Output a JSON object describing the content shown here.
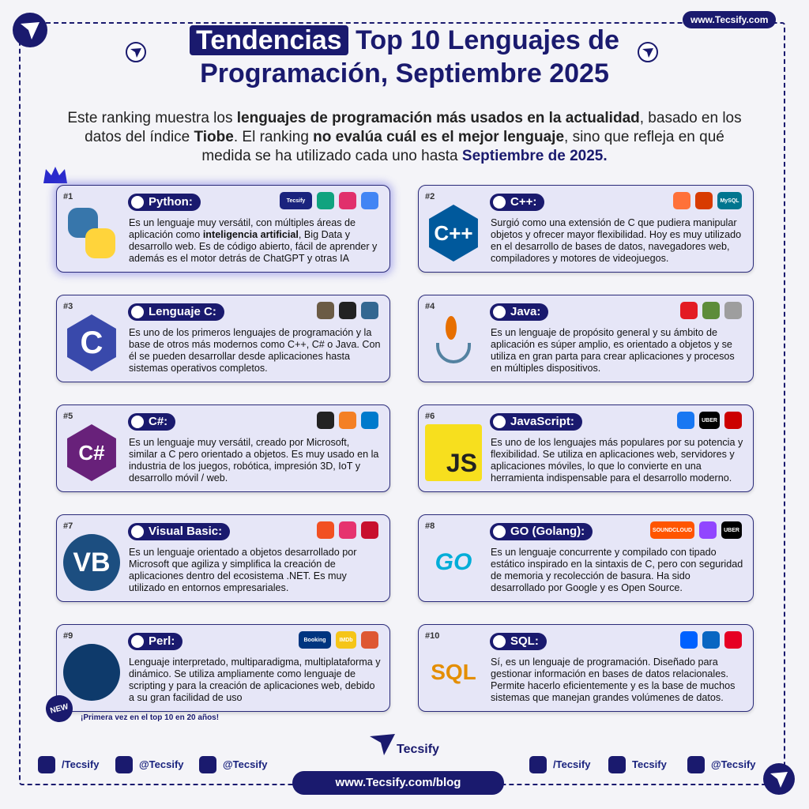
{
  "header": {
    "badge": "www.Tecsify.com",
    "title_highlight": "Tendencias",
    "title": "Top 10 Lenguajes de Programación, Septiembre 2025",
    "intro": [
      "Este ranking muestra los ",
      "lenguajes de programación más usados en la actualidad",
      ", basado en los datos del índice ",
      "Tiobe",
      ". El ranking ",
      "no evalúa cuál es el mejor lenguaje",
      ", sino que refleja en qué medida se ha utilizado cada uno hasta ",
      "Septiembre de 2025."
    ]
  },
  "languages": [
    {
      "rank": "#1",
      "name": "Python:",
      "logo": {
        "colors": [
          "#3776ab",
          "#ffd43b"
        ]
      },
      "icons": [
        {
          "color": "#1a237e",
          "label": "Tecsify"
        },
        {
          "color": "#10a37f"
        },
        {
          "color": "#e1306c"
        },
        {
          "color": "#4285f4"
        }
      ],
      "description": [
        "Es un lenguaje muy versátil, con múltiples áreas de aplicación como ",
        "inteligencia artificial",
        ", Big Data y desarrollo web. Es de código abierto, fácil de aprender y además es el motor detrás de ChatGPT y otras IA"
      ]
    },
    {
      "rank": "#2",
      "name": "C++:",
      "logo": {
        "colors": [
          "#00599c"
        ],
        "text": "C++",
        "shape": "hex"
      },
      "icons": [
        {
          "color": "#ff7139"
        },
        {
          "color": "#d83b01"
        },
        {
          "color": "#00758f",
          "label": "MySQL"
        }
      ],
      "description": [
        "Surgió como una extensión de C que pudiera manipular objetos y ofrecer mayor flexibilidad. Hoy es muy utilizado en el desarrollo de bases de datos, navegadores web, compiladores y motores de videojuegos."
      ]
    },
    {
      "rank": "#3",
      "name": "Lenguaje C:",
      "logo": {
        "colors": [
          "#3949ab"
        ],
        "text": "C",
        "shape": "hex"
      },
      "icons": [
        {
          "color": "#6b5b45"
        },
        {
          "color": "#222222"
        },
        {
          "color": "#336791"
        }
      ],
      "description": [
        "Es uno de los primeros lenguajes de programación y la base de otros más modernos como C++, C# o Java. Con él se pueden desarrollar desde aplicaciones hasta sistemas operativos completos."
      ]
    },
    {
      "rank": "#4",
      "name": "Java:",
      "logo": {
        "colors": [
          "#e76f00",
          "#5382a1"
        ],
        "shape": "java"
      },
      "icons": [
        {
          "color": "#e31b23"
        },
        {
          "color": "#5d8c3a"
        },
        {
          "color": "#9e9e9e"
        }
      ],
      "description": [
        "Es un lenguaje de propósito general y su ámbito de aplicación es súper amplio, es orientado a objetos y se utiliza en gran parta para crear aplicaciones y procesos en múltiples dispositivos."
      ]
    },
    {
      "rank": "#5",
      "name": "C#:",
      "logo": {
        "colors": [
          "#68217a"
        ],
        "text": "C#",
        "shape": "hex"
      },
      "icons": [
        {
          "color": "#222222"
        },
        {
          "color": "#f48024"
        },
        {
          "color": "#007acc"
        }
      ],
      "description": [
        "Es un lenguaje muy versátil, creado por Microsoft, similar a C pero orientado a objetos. Es muy usado en la industria de los juegos, robótica, impresión 3D, IoT y desarrollo móvil / web."
      ]
    },
    {
      "rank": "#6",
      "name": "JavaScript:",
      "logo": {
        "colors": [
          "#f7df1e"
        ],
        "text": "JS",
        "shape": "square",
        "text_color": "#222222"
      },
      "icons": [
        {
          "color": "#1877f2"
        },
        {
          "color": "#000000",
          "label": "UBER"
        },
        {
          "color": "#cc0000"
        }
      ],
      "description": [
        "Es uno de los lenguajes más populares por su potencia y flexibilidad. Se utiliza en aplicaciones web, servidores y aplicaciones móviles, lo que lo convierte en una herramienta indispensable para el desarrollo moderno."
      ]
    },
    {
      "rank": "#7",
      "name": "Visual Basic:",
      "logo": {
        "colors": [
          "#1c4e80"
        ],
        "text": "VB",
        "shape": "circle"
      },
      "icons": [
        {
          "color": "#f25022"
        },
        {
          "color": "#e6336f"
        },
        {
          "color": "#c8102e"
        }
      ],
      "description": [
        "Es un lenguaje orientado a objetos desarrollado por Microsoft que agiliza y simplifica la creación de aplicaciones dentro del ecosistema .NET. Es muy utilizado en entornos empresariales."
      ]
    },
    {
      "rank": "#8",
      "name": "GO (Golang):",
      "logo": {
        "colors": [
          "#00add8"
        ],
        "text": "GO",
        "shape": "plain"
      },
      "icons": [
        {
          "color": "#ff5500",
          "label": "SOUNDCLOUD"
        },
        {
          "color": "#9146ff"
        },
        {
          "color": "#000000",
          "label": "UBER"
        }
      ],
      "description": [
        "Es un lenguaje concurrente y compilado con tipado estático inspirado en la sintaxis de C, pero con seguridad de memoria y recolección de basura. Ha sido desarrollado por Google y es Open Source."
      ]
    },
    {
      "rank": "#9",
      "name": "Perl:",
      "logo": {
        "colors": [
          "#0e3a6b"
        ],
        "shape": "circle"
      },
      "icons": [
        {
          "color": "#003580",
          "label": "Booking"
        },
        {
          "color": "#f5c518",
          "label": "IMDb"
        },
        {
          "color": "#de5833"
        }
      ],
      "description": [
        "Lenguaje interpretado, multiparadigma, multiplataforma y dinámico. Se utiliza ampliamente como lenguaje de scripting y para la creación de aplicaciones web, debido a su gran facilidad de uso"
      ]
    },
    {
      "rank": "#10",
      "name": "SQL:",
      "logo": {
        "colors": [
          "#e48e00"
        ],
        "text": "SQL",
        "shape": "plain"
      },
      "icons": [
        {
          "color": "#0061ff"
        },
        {
          "color": "#0a66c2"
        },
        {
          "color": "#e60023"
        }
      ],
      "description": [
        "Sí, es un lenguaje de programación. Diseñado para gestionar información en bases de datos relacionales. Permite hacerlo eficientemente y es la base de muchos sistemas que manejan grandes volúmenes de datos."
      ]
    }
  ],
  "note": {
    "badge": "NEW",
    "text": "¡Primera vez en el top 10 en 20 años!"
  },
  "footer": {
    "brand": "Tecsify",
    "socials": [
      {
        "label": "/Tecsify",
        "color": "#1a237e"
      },
      {
        "label": "@Tecsify",
        "color": "#1a237e"
      },
      {
        "label": "@Tecsify",
        "color": "#1a237e"
      },
      {
        "label": "/Tecsify",
        "color": "#1a237e"
      },
      {
        "label": "Tecsify",
        "color": "#1a237e"
      },
      {
        "label": "@Tecsify",
        "color": "#1a237e"
      }
    ],
    "url": "www.Tecsify.com/blog"
  }
}
